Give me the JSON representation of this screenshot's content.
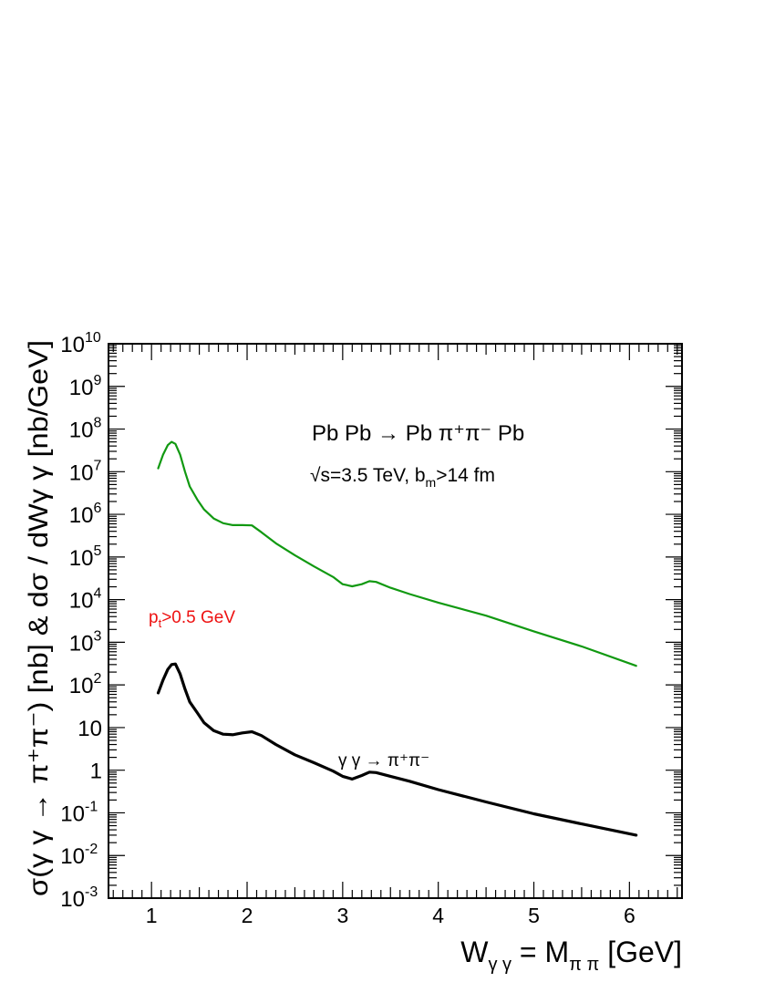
{
  "chart_data": {
    "type": "line",
    "xlabel": {
      "prefix": "W",
      "sub1": "γ γ",
      "mid": " = M",
      "sub2": "π π",
      "suffix": " [GeV]"
    },
    "ylabel": "σ(γ γ → π⁺π⁻) [nb] & dσ / dWγ γ [nb/GeV]",
    "xlim": [
      0.55,
      6.55
    ],
    "ylim": [
      0.001,
      10000000000
    ],
    "yscale": "log",
    "x_ticks": [
      "1",
      "2",
      "3",
      "4",
      "5",
      "6"
    ],
    "y_ticks": [
      {
        "value": 0.001,
        "base": "10",
        "exp": "-3"
      },
      {
        "value": 0.01,
        "base": "10",
        "exp": "-2"
      },
      {
        "value": 0.1,
        "base": "10",
        "exp": "-1"
      },
      {
        "value": 1,
        "base": "1",
        "exp": ""
      },
      {
        "value": 10,
        "base": "10",
        "exp": ""
      },
      {
        "value": 100,
        "base": "10",
        "exp": "2"
      },
      {
        "value": 1000,
        "base": "10",
        "exp": "3"
      },
      {
        "value": 10000,
        "base": "10",
        "exp": "4"
      },
      {
        "value": 100000,
        "base": "10",
        "exp": "5"
      },
      {
        "value": 1000000,
        "base": "10",
        "exp": "6"
      },
      {
        "value": 10000000,
        "base": "10",
        "exp": "7"
      },
      {
        "value": 100000000,
        "base": "10",
        "exp": "8"
      },
      {
        "value": 1000000000,
        "base": "10",
        "exp": "9"
      },
      {
        "value": 10000000000,
        "base": "10",
        "exp": "10"
      }
    ],
    "grid": false,
    "annotations": {
      "process": "Pb Pb → Pb π⁺π⁻ Pb",
      "energy": "√s=3.5 TeV, b",
      "energy_sub": "m",
      "energy_tail": ">14 fm",
      "cut_prefix": "p",
      "cut_sub": "t",
      "cut_tail": ">0.5 GeV",
      "curve_label": "γ γ → π⁺π⁻"
    },
    "series": [
      {
        "color": "#119911",
        "x": [
          1.07,
          1.12,
          1.17,
          1.21,
          1.25,
          1.3,
          1.35,
          1.4,
          1.48,
          1.55,
          1.65,
          1.75,
          1.85,
          1.95,
          2.05,
          2.15,
          2.3,
          2.5,
          2.7,
          2.9,
          3.0,
          3.1,
          3.2,
          3.28,
          3.35,
          3.5,
          3.7,
          4.0,
          4.5,
          5.0,
          5.5,
          6.07
        ],
        "y": [
          12000000,
          25000000,
          42000000,
          50000000,
          45000000,
          25000000,
          10000000,
          4500000,
          2200000,
          1300000,
          800000,
          620000,
          560000,
          560000,
          550000,
          380000,
          210000,
          110000,
          60000,
          34000,
          23000,
          20500,
          23000,
          27000,
          26000,
          19000,
          13500,
          8500,
          4200,
          1800,
          800,
          280
        ]
      },
      {
        "color": "#000000",
        "x": [
          1.07,
          1.12,
          1.17,
          1.21,
          1.25,
          1.3,
          1.35,
          1.4,
          1.48,
          1.55,
          1.65,
          1.75,
          1.85,
          1.95,
          2.05,
          2.15,
          2.3,
          2.5,
          2.7,
          2.9,
          3.0,
          3.1,
          3.2,
          3.28,
          3.35,
          3.5,
          3.7,
          4.0,
          4.5,
          5.0,
          5.5,
          6.07
        ],
        "y": [
          65,
          130,
          230,
          300,
          310,
          180,
          80,
          40,
          22,
          13,
          8.5,
          7.0,
          6.8,
          7.5,
          8.0,
          6.5,
          4.0,
          2.3,
          1.5,
          0.95,
          0.72,
          0.62,
          0.75,
          0.9,
          0.88,
          0.72,
          0.55,
          0.35,
          0.18,
          0.095,
          0.055,
          0.03
        ]
      }
    ]
  }
}
